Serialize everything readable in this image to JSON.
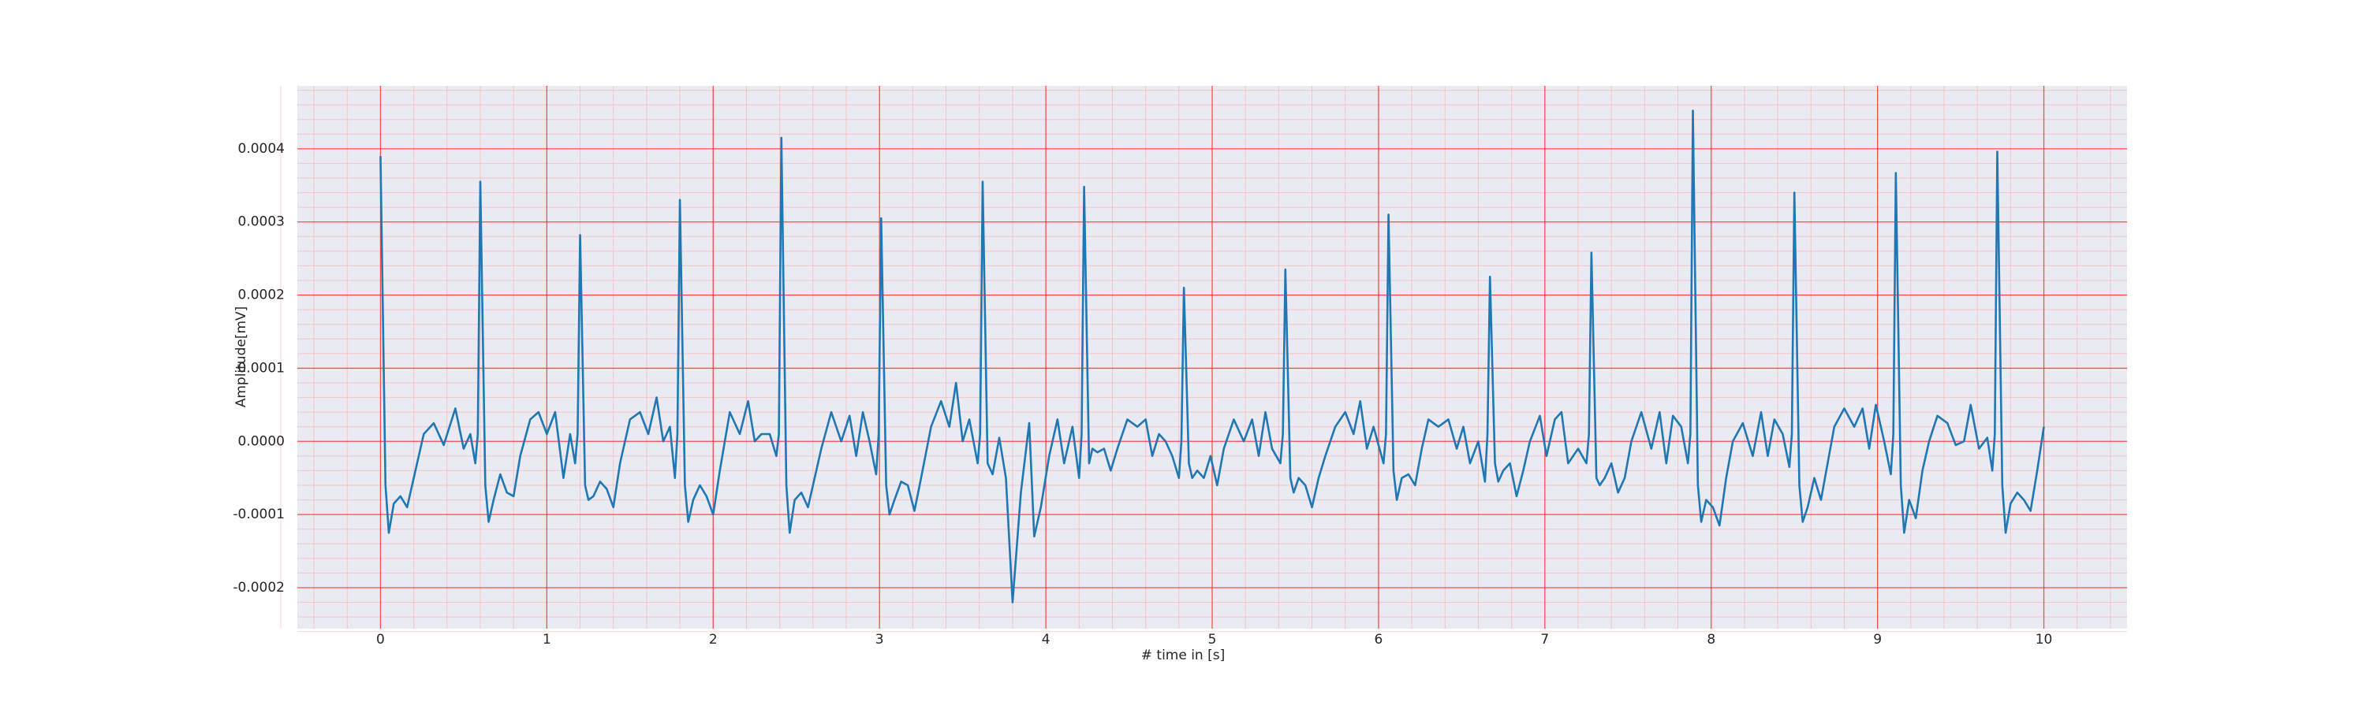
{
  "chart_data": {
    "type": "line",
    "x_label": "# time in [s]",
    "y_label": "Amplitude[mV]",
    "color": "#1f77b4",
    "xlim": [
      -0.5,
      10.5
    ],
    "ylim": [
      -0.000256,
      0.000486
    ],
    "xticks": [
      0,
      1,
      2,
      3,
      4,
      5,
      6,
      7,
      8,
      9,
      10
    ],
    "yticks": [
      -0.0002,
      -0.0001,
      {
        "value": 0,
        "label": "0.0000"
      },
      0.0001,
      0.0002,
      0.0003,
      0.0004
    ],
    "grid": true,
    "minor_grid": true,
    "x": [
      0,
      0.03,
      0.05,
      0.08,
      0.12,
      0.16,
      0.2,
      0.26,
      0.32,
      0.38,
      0.45,
      0.5,
      0.54,
      0.57,
      0.585,
      0.6,
      0.63,
      0.65,
      0.68,
      0.72,
      0.76,
      0.8,
      0.84,
      0.9,
      0.95,
      1.0,
      1.05,
      1.1,
      1.14,
      1.17,
      1.185,
      1.2,
      1.23,
      1.25,
      1.28,
      1.32,
      1.36,
      1.4,
      1.44,
      1.5,
      1.56,
      1.61,
      1.66,
      1.7,
      1.74,
      1.77,
      1.785,
      1.8,
      1.83,
      1.85,
      1.88,
      1.92,
      1.96,
      2.0,
      2.04,
      2.1,
      2.16,
      2.21,
      2.25,
      2.29,
      2.34,
      2.38,
      2.395,
      2.41,
      2.44,
      2.46,
      2.49,
      2.53,
      2.57,
      2.61,
      2.65,
      2.71,
      2.77,
      2.82,
      2.86,
      2.9,
      2.94,
      2.98,
      2.995,
      3.01,
      3.04,
      3.06,
      3.09,
      3.13,
      3.17,
      3.21,
      3.25,
      3.31,
      3.37,
      3.42,
      3.46,
      3.5,
      3.54,
      3.59,
      3.605,
      3.62,
      3.65,
      3.68,
      3.72,
      3.76,
      3.8,
      3.85,
      3.9,
      3.93,
      3.97,
      4.02,
      4.07,
      4.11,
      4.16,
      4.2,
      4.215,
      4.23,
      4.26,
      4.28,
      4.31,
      4.35,
      4.39,
      4.43,
      4.49,
      4.55,
      4.6,
      4.64,
      4.68,
      4.72,
      4.76,
      4.8,
      4.815,
      4.83,
      4.86,
      4.88,
      4.91,
      4.95,
      4.99,
      5.03,
      5.07,
      5.13,
      5.19,
      5.24,
      5.28,
      5.32,
      5.36,
      5.41,
      5.425,
      5.44,
      5.47,
      5.49,
      5.52,
      5.56,
      5.6,
      5.64,
      5.68,
      5.74,
      5.8,
      5.85,
      5.89,
      5.93,
      5.97,
      6.03,
      6.045,
      6.06,
      6.09,
      6.11,
      6.14,
      6.18,
      6.22,
      6.26,
      6.3,
      6.36,
      6.42,
      6.47,
      6.51,
      6.55,
      6.6,
      6.64,
      6.655,
      6.67,
      6.7,
      6.72,
      6.75,
      6.79,
      6.83,
      6.87,
      6.91,
      6.97,
      7.01,
      7.06,
      7.1,
      7.14,
      7.2,
      7.25,
      7.265,
      7.28,
      7.31,
      7.33,
      7.36,
      7.4,
      7.44,
      7.48,
      7.52,
      7.58,
      7.64,
      7.69,
      7.73,
      7.77,
      7.82,
      7.86,
      7.875,
      7.89,
      7.92,
      7.94,
      7.97,
      8.01,
      8.05,
      8.09,
      8.13,
      8.19,
      8.25,
      8.3,
      8.34,
      8.38,
      8.43,
      8.47,
      8.485,
      8.5,
      8.53,
      8.55,
      8.58,
      8.62,
      8.66,
      8.7,
      8.74,
      8.8,
      8.86,
      8.91,
      8.95,
      8.99,
      9.04,
      9.08,
      9.095,
      9.11,
      9.14,
      9.16,
      9.19,
      9.23,
      9.27,
      9.31,
      9.36,
      9.42,
      9.47,
      9.52,
      9.56,
      9.61,
      9.66,
      9.69,
      9.705,
      9.72,
      9.75,
      9.77,
      9.8,
      9.84,
      9.88,
      9.92,
      9.96,
      10.0
    ],
    "values": [
      0.00039,
      -6e-05,
      -0.000125,
      -8.5e-05,
      -7.5e-05,
      -9e-05,
      -5e-05,
      1e-05,
      2.5e-05,
      -5e-06,
      4.5e-05,
      -1e-05,
      1e-05,
      -3e-05,
      1e-05,
      0.000355,
      -6e-05,
      -0.00011,
      -8e-05,
      -4.5e-05,
      -7e-05,
      -7.5e-05,
      -2e-05,
      3e-05,
      4e-05,
      1e-05,
      4e-05,
      -5e-05,
      1e-05,
      -3e-05,
      1e-05,
      0.000282,
      -6e-05,
      -8e-05,
      -7.5e-05,
      -5.5e-05,
      -6.5e-05,
      -9e-05,
      -3e-05,
      3e-05,
      4e-05,
      1e-05,
      6e-05,
      0.0,
      2e-05,
      -5e-05,
      1e-05,
      0.00033,
      -6e-05,
      -0.00011,
      -8e-05,
      -6e-05,
      -7.5e-05,
      -0.0001,
      -4e-05,
      4e-05,
      1e-05,
      5.5e-05,
      0.0,
      1e-05,
      1e-05,
      -2e-05,
      1e-05,
      0.000415,
      -6e-05,
      -0.000125,
      -8e-05,
      -7e-05,
      -9e-05,
      -5e-05,
      -1e-05,
      4e-05,
      0.0,
      3.5e-05,
      -2e-05,
      4e-05,
      0.0,
      -4.5e-05,
      1e-05,
      0.000305,
      -6e-05,
      -0.0001,
      -8e-05,
      -5.5e-05,
      -6e-05,
      -9.5e-05,
      -5e-05,
      2e-05,
      5.5e-05,
      2e-05,
      8e-05,
      0.0,
      3e-05,
      -3e-05,
      1e-05,
      0.000355,
      -3e-05,
      -4.5e-05,
      5e-06,
      -5e-05,
      -0.00022,
      -7e-05,
      2.5e-05,
      -0.00013,
      -9e-05,
      -2e-05,
      3e-05,
      -3e-05,
      2e-05,
      -5e-05,
      1e-05,
      0.000348,
      -3e-05,
      -1e-05,
      -1.5e-05,
      -1e-05,
      -4e-05,
      -1e-05,
      3e-05,
      2e-05,
      3e-05,
      -2e-05,
      1e-05,
      0.0,
      -2e-05,
      -5e-05,
      0.0,
      0.00021,
      -3e-05,
      -5e-05,
      -4e-05,
      -5e-05,
      -2e-05,
      -6e-05,
      -1e-05,
      3e-05,
      0.0,
      3e-05,
      -2e-05,
      4e-05,
      -1e-05,
      -3e-05,
      1e-05,
      0.000235,
      -5e-05,
      -7e-05,
      -5e-05,
      -6e-05,
      -9e-05,
      -5e-05,
      -2e-05,
      2e-05,
      4e-05,
      1e-05,
      5.5e-05,
      -1e-05,
      2e-05,
      -3e-05,
      1e-05,
      0.00031,
      -4e-05,
      -8e-05,
      -5e-05,
      -4.5e-05,
      -6e-05,
      -1e-05,
      3e-05,
      2e-05,
      3e-05,
      -1e-05,
      2e-05,
      -3e-05,
      0.0,
      -5.5e-05,
      1e-05,
      0.000225,
      -3e-05,
      -5.5e-05,
      -4e-05,
      -3e-05,
      -7.5e-05,
      -4e-05,
      0.0,
      3.5e-05,
      -2e-05,
      3e-05,
      4e-05,
      -3e-05,
      -1e-05,
      -3e-05,
      1e-05,
      0.000258,
      -5e-05,
      -6e-05,
      -5e-05,
      -3e-05,
      -7e-05,
      -5e-05,
      0.0,
      4e-05,
      -1e-05,
      4e-05,
      -3e-05,
      3.5e-05,
      2e-05,
      -3e-05,
      1e-05,
      0.000452,
      -6e-05,
      -0.00011,
      -8e-05,
      -9e-05,
      -0.000115,
      -5e-05,
      0.0,
      2.5e-05,
      -2e-05,
      4e-05,
      -2e-05,
      3e-05,
      1e-05,
      -3.5e-05,
      1e-05,
      0.00034,
      -6e-05,
      -0.00011,
      -9e-05,
      -5e-05,
      -8e-05,
      -3e-05,
      2e-05,
      4.5e-05,
      2e-05,
      4.5e-05,
      -1e-05,
      5e-05,
      0.0,
      -4.5e-05,
      1e-05,
      0.000367,
      -6e-05,
      -0.000125,
      -8e-05,
      -0.000105,
      -4e-05,
      0.0,
      3.5e-05,
      2.5e-05,
      -5e-06,
      0.0,
      5e-05,
      -1e-05,
      5e-06,
      -4e-05,
      1e-05,
      0.000396,
      -6e-05,
      -0.000125,
      -8.5e-05,
      -7e-05,
      -8e-05,
      -9.5e-05,
      -4e-05,
      2e-05
    ]
  }
}
